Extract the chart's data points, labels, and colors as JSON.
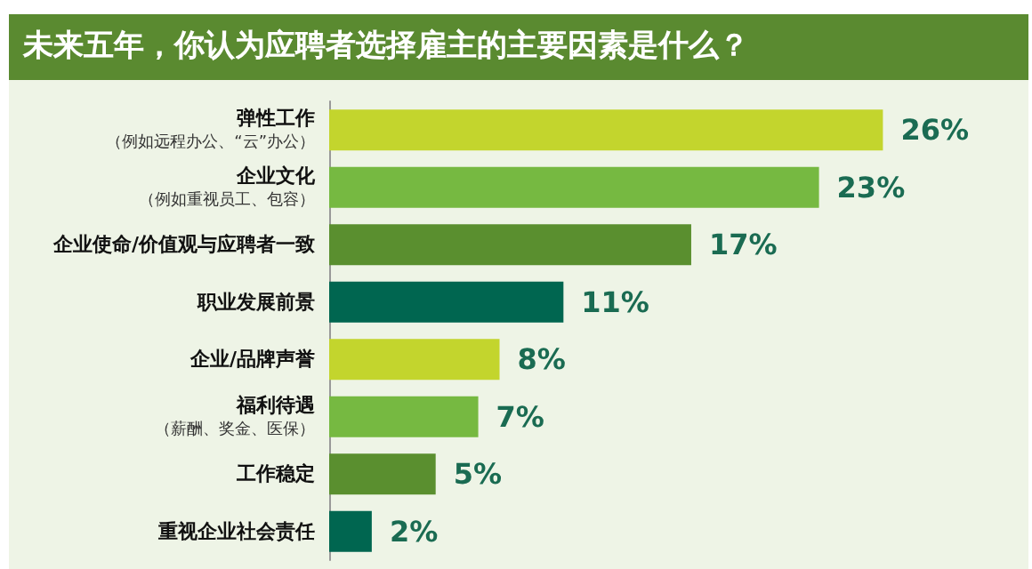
{
  "chart_data": {
    "type": "bar",
    "orientation": "horizontal",
    "title": "未来五年，你认为应聘者选择雇主的主要因素是什么？",
    "categories": [
      "弹性工作（例如远程办公、“云”办公）",
      "企业文化（例如重视员工、包容）",
      "企业使命/价值观与应聘者一致",
      "职业发展前景",
      "企业/品牌声誉",
      "福利待遇（薪酬、奖金、医保）",
      "工作稳定",
      "重视企业社会责任"
    ],
    "values": [
      26,
      23,
      17,
      11,
      8,
      7,
      5,
      2
    ],
    "colors": [
      "#c3d52d",
      "#76b941",
      "#5a8f2f",
      "#006650",
      "#c3d52d",
      "#76b941",
      "#5a8f2f",
      "#006650"
    ],
    "value_labels": [
      "26%",
      "23%",
      "17%",
      "11%",
      "8%",
      "7%",
      "5%",
      "2%"
    ],
    "tick_labels": "y"
  }
}
